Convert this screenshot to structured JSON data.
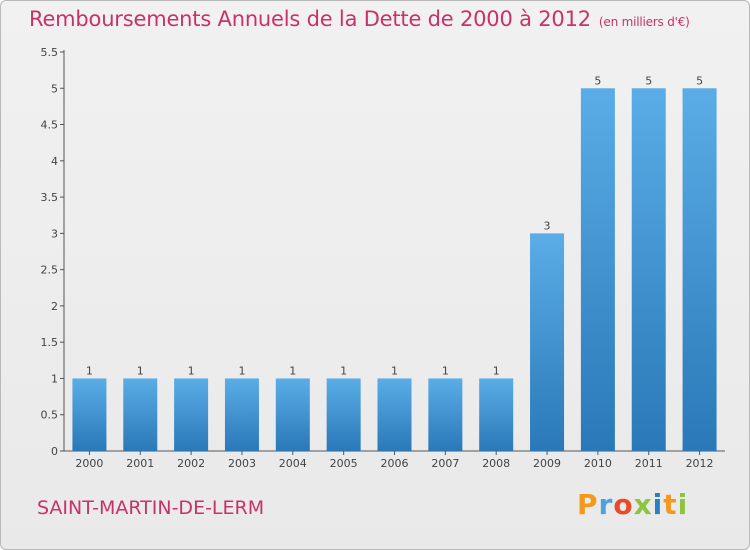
{
  "header": {
    "title": "Remboursements Annuels de la Dette de 2000 à 2012",
    "units": "(en milliers d'€)"
  },
  "footer": {
    "commune": "SAINT-MARTIN-DE-LERM",
    "logo_letters": [
      "P",
      "r",
      "o",
      "x",
      "i",
      "t",
      "i"
    ],
    "logo_colors": [
      "#f39a1e",
      "#4aa3df",
      "#e84b2a",
      "#8cc63f",
      "#2e7fc0",
      "#f39a1e",
      "#8cc63f"
    ]
  },
  "chart_data": {
    "type": "bar",
    "title": "Remboursements Annuels de la Dette de 2000 à 2012",
    "xlabel": "",
    "ylabel": "",
    "categories": [
      "2000",
      "2001",
      "2002",
      "2003",
      "2004",
      "2005",
      "2006",
      "2007",
      "2008",
      "2009",
      "2010",
      "2011",
      "2012"
    ],
    "values": [
      1,
      1,
      1,
      1,
      1,
      1,
      1,
      1,
      1,
      3,
      5,
      5,
      5
    ],
    "data_labels": [
      "1",
      "1",
      "1",
      "1",
      "1",
      "1",
      "1",
      "1",
      "1",
      "3",
      "5",
      "5",
      "5"
    ],
    "ylim": [
      0,
      5.5
    ],
    "yticks": [
      0,
      0.5,
      1,
      1.5,
      2,
      2.5,
      3,
      3.5,
      4,
      4.5,
      5,
      5.5
    ],
    "ytick_labels": [
      "0",
      "0.5",
      "1",
      "1.5",
      "2",
      "2.5",
      "3",
      "3.5",
      "4",
      "4.5",
      "5",
      "5.5"
    ],
    "grid": false,
    "bar_color_top": "#5aade6",
    "bar_color_bottom": "#2a78b8"
  }
}
